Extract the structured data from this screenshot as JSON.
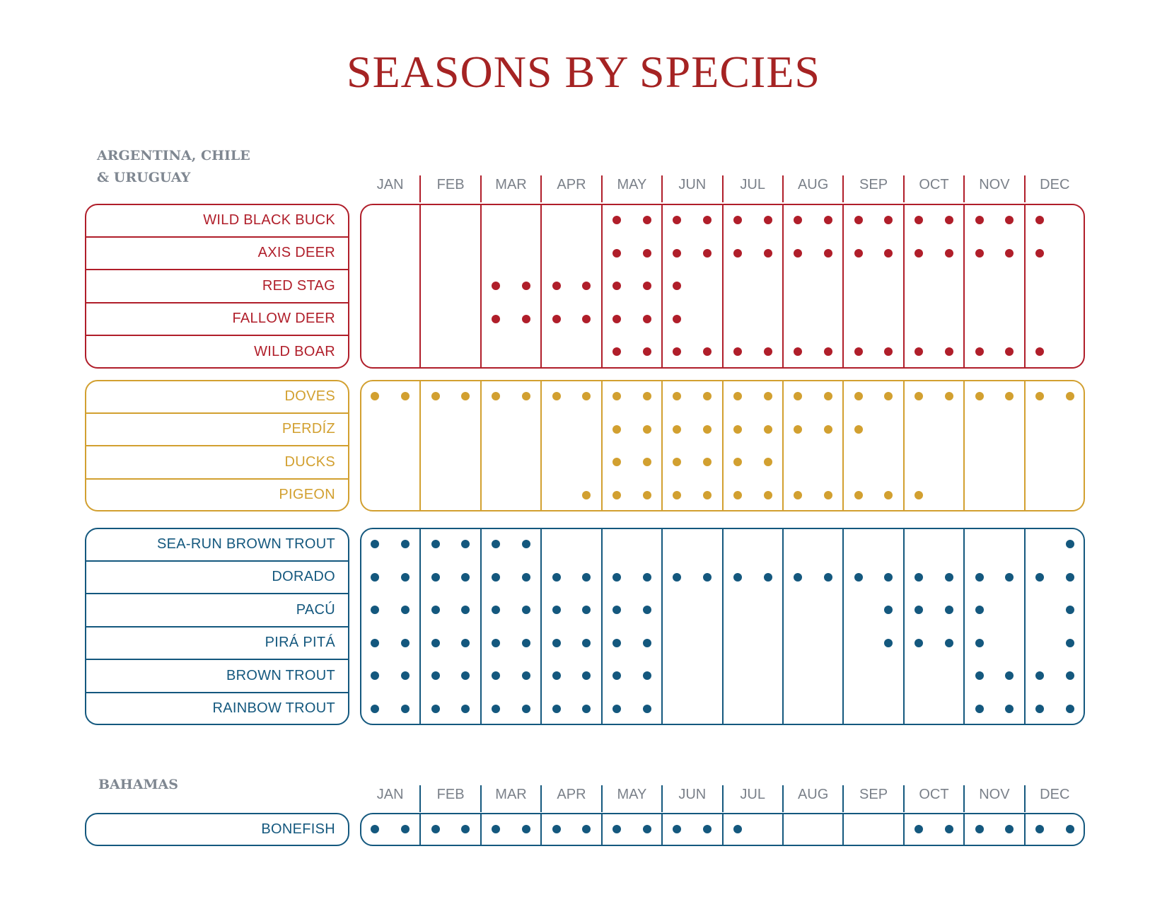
{
  "title": "SEASONS BY SPECIES",
  "colors": {
    "title": "#a52323",
    "big_game": "#b01e2a",
    "birds": "#d2a030",
    "fish": "#14587e",
    "header_text": "#7a8089",
    "region_text": "#7f8791"
  },
  "months": [
    "JAN",
    "FEB",
    "MAR",
    "APR",
    "MAY",
    "JUN",
    "JUL",
    "AUG",
    "SEP",
    "OCT",
    "NOV",
    "DEC"
  ],
  "sections": [
    {
      "region": "ARGENTINA, CHILE & URUGUAY",
      "region_lines": [
        "ARGENTINA, CHILE",
        "& URUGUAY"
      ],
      "groups": [
        {
          "category": "big_game",
          "color": "#b01e2a",
          "rows": [
            {
              "label": "WILD BLACK BUCK",
              "season_marks": [
                0,
                0,
                0,
                0,
                0,
                0,
                0,
                0,
                1,
                1,
                1,
                1,
                1,
                1,
                1,
                1,
                1,
                1,
                1,
                1,
                1,
                1,
                1,
                0
              ]
            },
            {
              "label": "AXIS DEER",
              "season_marks": [
                0,
                0,
                0,
                0,
                0,
                0,
                0,
                0,
                1,
                1,
                1,
                1,
                1,
                1,
                1,
                1,
                1,
                1,
                1,
                1,
                1,
                1,
                1,
                0
              ]
            },
            {
              "label": "RED STAG",
              "season_marks": [
                0,
                0,
                0,
                0,
                1,
                1,
                1,
                1,
                1,
                1,
                1,
                0,
                0,
                0,
                0,
                0,
                0,
                0,
                0,
                0,
                0,
                0,
                0,
                0
              ]
            },
            {
              "label": "FALLOW DEER",
              "season_marks": [
                0,
                0,
                0,
                0,
                1,
                1,
                1,
                1,
                1,
                1,
                1,
                0,
                0,
                0,
                0,
                0,
                0,
                0,
                0,
                0,
                0,
                0,
                0,
                0
              ]
            },
            {
              "label": "WILD BOAR",
              "season_marks": [
                0,
                0,
                0,
                0,
                0,
                0,
                0,
                0,
                1,
                1,
                1,
                1,
                1,
                1,
                1,
                1,
                1,
                1,
                1,
                1,
                1,
                1,
                1,
                0
              ]
            }
          ]
        },
        {
          "category": "birds",
          "color": "#d2a030",
          "rows": [
            {
              "label": "DOVES",
              "season_marks": [
                1,
                1,
                1,
                1,
                1,
                1,
                1,
                1,
                1,
                1,
                1,
                1,
                1,
                1,
                1,
                1,
                1,
                1,
                1,
                1,
                1,
                1,
                1,
                1
              ]
            },
            {
              "label": "PERDÍZ",
              "season_marks": [
                0,
                0,
                0,
                0,
                0,
                0,
                0,
                0,
                1,
                1,
                1,
                1,
                1,
                1,
                1,
                1,
                1,
                0,
                0,
                0,
                0,
                0,
                0,
                0
              ]
            },
            {
              "label": "DUCKS",
              "season_marks": [
                0,
                0,
                0,
                0,
                0,
                0,
                0,
                0,
                1,
                1,
                1,
                1,
                1,
                1,
                0,
                0,
                0,
                0,
                0,
                0,
                0,
                0,
                0,
                0
              ]
            },
            {
              "label": "PIGEON",
              "season_marks": [
                0,
                0,
                0,
                0,
                0,
                0,
                0,
                1,
                1,
                1,
                1,
                1,
                1,
                1,
                1,
                1,
                1,
                1,
                1,
                0,
                0,
                0,
                0,
                0
              ]
            }
          ]
        },
        {
          "category": "fish",
          "color": "#14587e",
          "rows": [
            {
              "label": "SEA-RUN BROWN TROUT",
              "season_marks": [
                1,
                1,
                1,
                1,
                1,
                1,
                0,
                0,
                0,
                0,
                0,
                0,
                0,
                0,
                0,
                0,
                0,
                0,
                0,
                0,
                0,
                0,
                0,
                1
              ]
            },
            {
              "label": "DORADO",
              "season_marks": [
                1,
                1,
                1,
                1,
                1,
                1,
                1,
                1,
                1,
                1,
                1,
                1,
                1,
                1,
                1,
                1,
                1,
                1,
                1,
                1,
                1,
                1,
                1,
                1
              ]
            },
            {
              "label": "PACÚ",
              "season_marks": [
                1,
                1,
                1,
                1,
                1,
                1,
                1,
                1,
                1,
                1,
                0,
                0,
                0,
                0,
                0,
                0,
                0,
                1,
                1,
                1,
                1,
                0,
                0,
                1
              ]
            },
            {
              "label": "PIRÁ PITÁ",
              "season_marks": [
                1,
                1,
                1,
                1,
                1,
                1,
                1,
                1,
                1,
                1,
                0,
                0,
                0,
                0,
                0,
                0,
                0,
                1,
                1,
                1,
                1,
                0,
                0,
                1
              ]
            },
            {
              "label": "BROWN TROUT",
              "season_marks": [
                1,
                1,
                1,
                1,
                1,
                1,
                1,
                1,
                1,
                1,
                0,
                0,
                0,
                0,
                0,
                0,
                0,
                0,
                0,
                0,
                1,
                1,
                1,
                1
              ]
            },
            {
              "label": "RAINBOW TROUT",
              "season_marks": [
                1,
                1,
                1,
                1,
                1,
                1,
                1,
                1,
                1,
                1,
                0,
                0,
                0,
                0,
                0,
                0,
                0,
                0,
                0,
                0,
                1,
                1,
                1,
                1
              ]
            }
          ]
        }
      ]
    },
    {
      "region": "BAHAMAS",
      "region_lines": [
        "BAHAMAS"
      ],
      "groups": [
        {
          "category": "fish",
          "color": "#14587e",
          "rows": [
            {
              "label": "BONEFISH",
              "season_marks": [
                1,
                1,
                1,
                1,
                1,
                1,
                1,
                1,
                1,
                1,
                1,
                1,
                1,
                0,
                0,
                0,
                0,
                0,
                1,
                1,
                1,
                1,
                1,
                1
              ]
            }
          ]
        }
      ]
    }
  ]
}
